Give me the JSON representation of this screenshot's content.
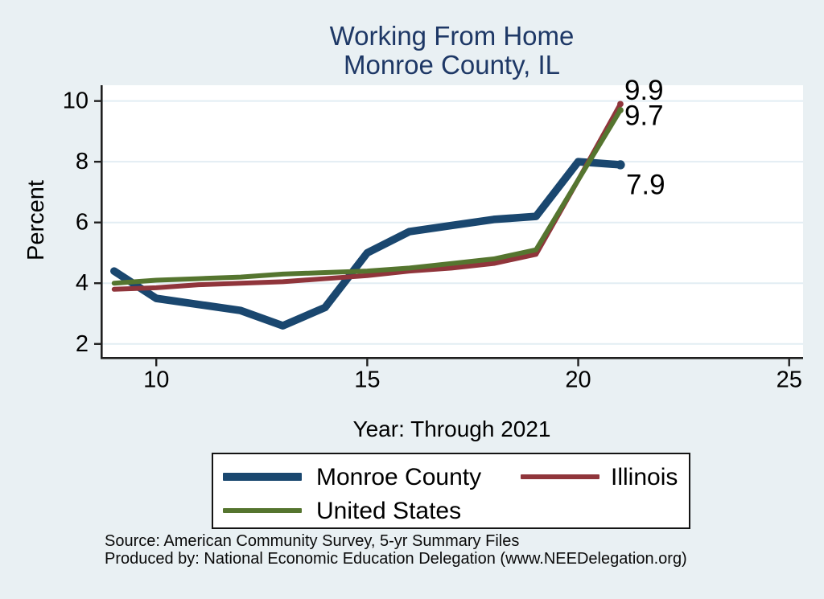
{
  "title": {
    "line1": "Working From Home",
    "line2": "Monroe County, IL"
  },
  "chart_data": {
    "type": "line",
    "x": [
      9,
      10,
      11,
      12,
      13,
      14,
      15,
      16,
      17,
      18,
      19,
      20,
      21
    ],
    "series": [
      {
        "name": "Monroe County",
        "color": "#1a476f",
        "line_width": 9.5,
        "values": [
          4.4,
          3.5,
          3.3,
          3.1,
          2.6,
          3.2,
          5.0,
          5.7,
          5.9,
          6.1,
          6.2,
          8.0,
          7.9
        ],
        "end_label": "7.9"
      },
      {
        "name": "Illinois",
        "color": "#90353b",
        "line_width": 6,
        "values": [
          3.8,
          3.85,
          3.95,
          4.0,
          4.05,
          4.15,
          4.25,
          4.4,
          4.5,
          4.65,
          4.95,
          7.4,
          9.9
        ],
        "end_label": "9.9"
      },
      {
        "name": "United States",
        "color": "#55752f",
        "line_width": 6,
        "values": [
          4.0,
          4.1,
          4.15,
          4.2,
          4.3,
          4.35,
          4.4,
          4.5,
          4.65,
          4.8,
          5.1,
          7.4,
          9.7
        ],
        "end_label": "9.7"
      }
    ],
    "title": "Working From Home  Monroe County, IL",
    "xlabel": "Year: Through 2021",
    "ylabel": "Percent",
    "xticks": [
      10,
      15,
      20,
      25
    ],
    "yticks": [
      2,
      4,
      6,
      8,
      10
    ],
    "xlim": [
      8.68,
      25.33
    ],
    "ylim": [
      1.57,
      10.52
    ],
    "grid": true,
    "legend_position": "bottom"
  },
  "legend": {
    "items": [
      {
        "label": "Monroe County",
        "color": "#1a476f",
        "thickness": 10
      },
      {
        "label": "Illinois",
        "color": "#90353b",
        "thickness": 6
      },
      {
        "label": "United States",
        "color": "#55752f",
        "thickness": 6
      }
    ]
  },
  "source": {
    "line1": "Source: American Community Survey, 5-yr Summary Files",
    "line2": "Produced by: National Economic Education Delegation (www.NEEDelegation.org)"
  },
  "colors": {
    "background": "#e9f0f3",
    "plot_background": "#ffffff",
    "gridline": "#e2edf3",
    "axis": "#1f1f1f",
    "title": "#1e3866"
  }
}
